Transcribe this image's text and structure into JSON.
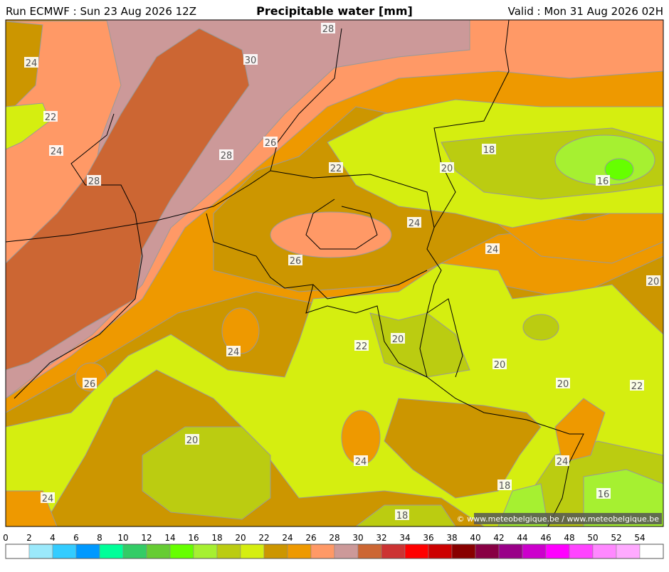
{
  "header": {
    "run": "Run ECMWF : Sun 23 Aug 2026 12Z",
    "title": "Precipitable water [mm]",
    "valid": "Valid : Mon 31 Aug 2026 02H"
  },
  "map": {
    "contour_labels": [
      28,
      30,
      24,
      22,
      24,
      28,
      26,
      28,
      22,
      18,
      20,
      16,
      24,
      24,
      26,
      20,
      24,
      20,
      22,
      20,
      20,
      26,
      22,
      20,
      24,
      24,
      18,
      16,
      24,
      18
    ],
    "copyright": "© www.meteobelgique.be / www.meteobelgique.be"
  },
  "legend": {
    "ticks": [
      0,
      2,
      4,
      6,
      8,
      10,
      12,
      14,
      16,
      18,
      20,
      22,
      24,
      26,
      28,
      30,
      32,
      34,
      36,
      38,
      40,
      42,
      44,
      46,
      48,
      50,
      52,
      54
    ],
    "colors": [
      "#ffffff",
      "#9be9fb",
      "#33ccff",
      "#0099ff",
      "#00ff99",
      "#33cc66",
      "#66cc33",
      "#66ff00",
      "#a6f031",
      "#bbcc11",
      "#d5ee10",
      "#cc9600",
      "#ee9900",
      "#ff9966",
      "#cc9999",
      "#cc6633",
      "#cc3333",
      "#ff0000",
      "#cc0000",
      "#880000",
      "#880044",
      "#990088",
      "#cc00cc",
      "#ff00ff",
      "#ff44ff",
      "#ff88ff",
      "#ffaaff",
      "#ffffff"
    ]
  }
}
